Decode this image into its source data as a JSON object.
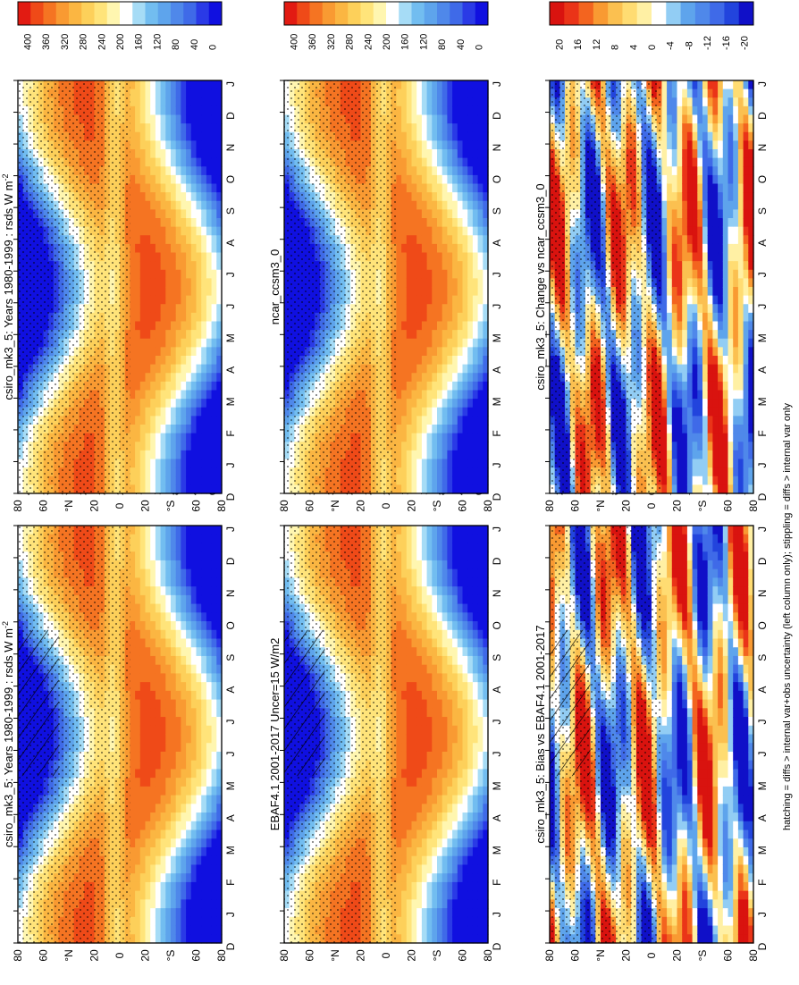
{
  "figure": {
    "footnote": "hatching = diffs > internal var+obs uncertainty (left column only); stippling = diffs > internal var only",
    "hemisphere_north": "°N",
    "hemisphere_south": "°S"
  },
  "colors": {
    "abs": [
      "#1010e0",
      "#2a3ae6",
      "#3f6ae8",
      "#4f88ea",
      "#5ea4ec",
      "#72bdf0",
      "#a6dcf6",
      "#ffffff",
      "#fff6b0",
      "#ffe47a",
      "#fdd05a",
      "#fbb642",
      "#f99a32",
      "#f57422",
      "#ef4a18",
      "#e21b12"
    ],
    "diff": [
      "#1010c8",
      "#2244dd",
      "#3f6ae8",
      "#4f88ea",
      "#5ea4ec",
      "#92cdf4",
      "#ffffff",
      "#fff0a4",
      "#ffdc72",
      "#fbc050",
      "#f99a32",
      "#f3641f",
      "#ea3418",
      "#d9130f"
    ]
  },
  "chart_data": [
    {
      "type": "heatmap",
      "title": "csiro_mk3_5: Years 1980-1999 : rsds W m",
      "title_superscript": "-2",
      "x": [
        "D",
        "J",
        "F",
        "M",
        "A",
        "M",
        "J",
        "J",
        "A",
        "S",
        "O",
        "N",
        "D",
        "J"
      ],
      "y_ticks": [
        "80",
        "60",
        "°N",
        "20",
        "0",
        "20",
        "°S",
        "60",
        "80"
      ],
      "colorbar": {
        "ticks": [
          "400",
          "360",
          "320",
          "280",
          "240",
          "200",
          "160",
          "120",
          "80",
          "40",
          "0"
        ],
        "range": [
          0,
          400
        ]
      },
      "hatching": true,
      "stippling": true
    },
    {
      "type": "heatmap",
      "title": "csiro_mk3_5: Years 1980-1999 : rsds W m",
      "title_superscript": "-2",
      "x": [
        "D",
        "J",
        "F",
        "M",
        "A",
        "M",
        "J",
        "J",
        "A",
        "S",
        "O",
        "N",
        "D",
        "J"
      ],
      "y_ticks": [
        "80",
        "60",
        "°N",
        "20",
        "0",
        "20",
        "°S",
        "60",
        "80"
      ],
      "colorbar": {
        "ticks": [
          "400",
          "360",
          "320",
          "280",
          "240",
          "200",
          "160",
          "120",
          "80",
          "40",
          "0"
        ],
        "range": [
          0,
          400
        ]
      },
      "hatching": false,
      "stippling": true
    },
    {
      "type": "heatmap",
      "title": "EBAF4.1 2001-2017 Uncer=15 W/m2",
      "x": [
        "D",
        "J",
        "F",
        "M",
        "A",
        "M",
        "J",
        "J",
        "A",
        "S",
        "O",
        "N",
        "D",
        "J"
      ],
      "y_ticks": [
        "80",
        "60",
        "°N",
        "20",
        "0",
        "20",
        "°S",
        "60",
        "80"
      ],
      "colorbar": {
        "ticks": [
          "400",
          "360",
          "320",
          "280",
          "240",
          "200",
          "160",
          "120",
          "80",
          "40",
          "0"
        ],
        "range": [
          0,
          400
        ]
      },
      "hatching": true,
      "stippling": true
    },
    {
      "type": "heatmap",
      "title": "ncar_ccsm3_0",
      "x": [
        "D",
        "J",
        "F",
        "M",
        "A",
        "M",
        "J",
        "J",
        "A",
        "S",
        "O",
        "N",
        "D",
        "J"
      ],
      "y_ticks": [
        "80",
        "60",
        "°N",
        "20",
        "0",
        "20",
        "°S",
        "60",
        "80"
      ],
      "colorbar": {
        "ticks": [
          "400",
          "360",
          "320",
          "280",
          "240",
          "200",
          "160",
          "120",
          "80",
          "40",
          "0"
        ],
        "range": [
          0,
          400
        ]
      },
      "hatching": false,
      "stippling": true
    },
    {
      "type": "heatmap",
      "title": "csiro_mk3_5: Bias vs EBAF4.1 2001-2017",
      "x": [
        "D",
        "J",
        "F",
        "M",
        "A",
        "M",
        "J",
        "J",
        "A",
        "S",
        "O",
        "N",
        "D",
        "J"
      ],
      "y_ticks": [
        "80",
        "60",
        "°N",
        "20",
        "0",
        "20",
        "°S",
        "60",
        "80"
      ],
      "colorbar": {
        "ticks": [
          "20",
          "16",
          "12",
          "8",
          "4",
          "0",
          "-4",
          "-8",
          "-12",
          "-16",
          "-20"
        ],
        "range": [
          -20,
          20
        ]
      },
      "hatching": true,
      "stippling": true
    },
    {
      "type": "heatmap",
      "title": "csiro_mk3_5: Change vs ncar_ccsm3_0",
      "x": [
        "D",
        "J",
        "F",
        "M",
        "A",
        "M",
        "J",
        "J",
        "A",
        "S",
        "O",
        "N",
        "D",
        "J"
      ],
      "y_ticks": [
        "80",
        "60",
        "°N",
        "20",
        "0",
        "20",
        "°S",
        "60",
        "80"
      ],
      "colorbar": {
        "ticks": [
          "20",
          "16",
          "12",
          "8",
          "4",
          "0",
          "-4",
          "-8",
          "-12",
          "-16",
          "-20"
        ],
        "range": [
          -20,
          20
        ]
      },
      "hatching": false,
      "stippling": true
    }
  ]
}
